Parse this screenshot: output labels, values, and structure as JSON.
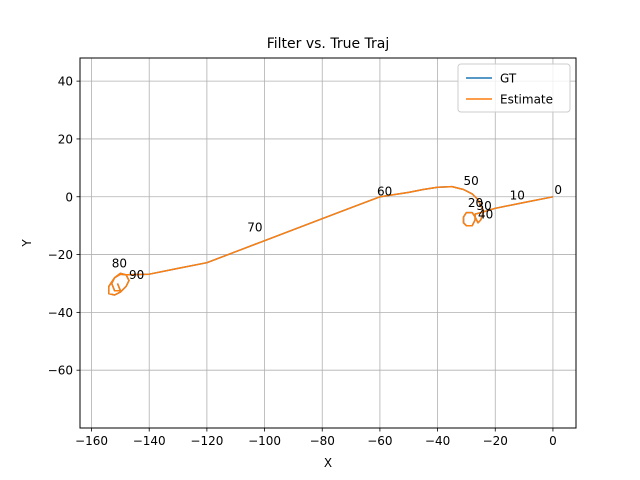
{
  "chart_data": {
    "type": "line",
    "title": "Filter vs. True Traj",
    "xlabel": "X",
    "ylabel": "Y",
    "xlim": [
      -164,
      8
    ],
    "ylim": [
      -80,
      48
    ],
    "xticks": [
      -160,
      -140,
      -120,
      -100,
      -80,
      -60,
      -40,
      -20,
      0
    ],
    "yticks": [
      -60,
      -40,
      -20,
      0,
      20,
      40
    ],
    "grid": true,
    "legend_position": "top-right",
    "series": [
      {
        "name": "GT",
        "color": "#1f77b4",
        "x": [
          0,
          -10,
          -20,
          -25,
          -27,
          -27,
          -28,
          -30,
          -31,
          -31,
          -30,
          -28,
          -27,
          -26,
          -25,
          -24,
          -26,
          -28,
          -31,
          -35,
          -40,
          -45,
          -50,
          -60,
          -70,
          -80,
          -90,
          -100,
          -110,
          -120,
          -130,
          -140,
          -148,
          -150,
          -152,
          -154,
          -154,
          -152,
          -150,
          -148,
          -147,
          -148,
          -150,
          -152,
          -153,
          -152,
          -150,
          -151
        ],
        "y": [
          0,
          -2,
          -4,
          -5.5,
          -6,
          -8,
          -10,
          -10,
          -9,
          -7,
          -5.5,
          -5.5,
          -7,
          -9,
          -8,
          -5,
          -1,
          1,
          2.5,
          3.5,
          3.3,
          2.5,
          1.5,
          0,
          -3.8,
          -7.6,
          -11.4,
          -15.2,
          -19,
          -22.8,
          -24.8,
          -26.8,
          -27,
          -26.8,
          -28,
          -31,
          -33.5,
          -34,
          -33,
          -31,
          -29,
          -27,
          -26.5,
          -28,
          -30,
          -32.5,
          -32.5,
          -30
        ]
      },
      {
        "name": "Estimate",
        "color": "#ff7f0e",
        "x": [
          0,
          -10,
          -20,
          -25,
          -27,
          -27,
          -28,
          -30,
          -31,
          -31,
          -30,
          -28,
          -27,
          -26,
          -25,
          -24,
          -26,
          -28,
          -31,
          -35,
          -40,
          -45,
          -50,
          -60,
          -70,
          -80,
          -90,
          -100,
          -110,
          -120,
          -130,
          -140,
          -148,
          -150,
          -152,
          -154,
          -154,
          -152,
          -150,
          -148,
          -147,
          -148,
          -150,
          -152,
          -153,
          -152,
          -150,
          -151
        ],
        "y": [
          0,
          -2,
          -4,
          -5.5,
          -6,
          -8,
          -10,
          -10,
          -9,
          -7,
          -5.5,
          -5.5,
          -7,
          -9,
          -8,
          -5,
          -1,
          1,
          2.5,
          3.5,
          3.3,
          2.5,
          1.5,
          0,
          -3.8,
          -7.6,
          -11.4,
          -15.2,
          -19,
          -22.8,
          -24.8,
          -26.8,
          -27,
          -26.8,
          -28,
          -31,
          -33.5,
          -34,
          -33,
          -31,
          -29,
          -27,
          -26.5,
          -28,
          -30,
          -32.5,
          -32.5,
          -30
        ]
      }
    ],
    "annotations": [
      {
        "text": "0",
        "x": 0.5,
        "y": 1
      },
      {
        "text": "10",
        "x": -15,
        "y": -1
      },
      {
        "text": "20",
        "x": -29.5,
        "y": -3.5
      },
      {
        "text": "30",
        "x": -26.5,
        "y": -4.5
      },
      {
        "text": "40",
        "x": -26,
        "y": -7.5
      },
      {
        "text": "50",
        "x": -31,
        "y": 4
      },
      {
        "text": "60",
        "x": -61,
        "y": 0.5
      },
      {
        "text": "70",
        "x": -106,
        "y": -12
      },
      {
        "text": "80",
        "x": -153,
        "y": -24.5
      },
      {
        "text": "90",
        "x": -147,
        "y": -28.5
      }
    ]
  }
}
